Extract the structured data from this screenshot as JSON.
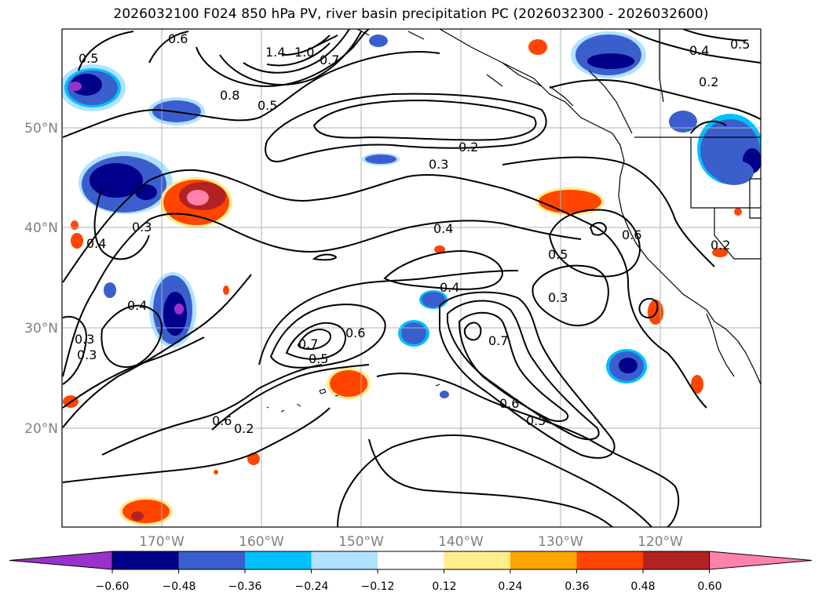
{
  "title": "2026032100 F024 850 hPa PV, river basin precipitation PC (2026032300 - 2026032600)",
  "latitude_labels": [
    "50°N",
    "40°N",
    "30°N",
    "20°N"
  ],
  "longitude_labels": [
    "170°W",
    "160°W",
    "150°W",
    "140°W",
    "130°W",
    "120°W"
  ],
  "colorbar": {
    "tick_labels": [
      "−0.60",
      "−0.48",
      "−0.36",
      "−0.24",
      "−0.12",
      "0.12",
      "0.24",
      "0.36",
      "0.48",
      "0.60"
    ],
    "colors": [
      "#9932cc",
      "#00008b",
      "#3a5fcd",
      "#00bfff",
      "#b0e2ff",
      "#ffffff",
      "#ffec8b",
      "#ffa500",
      "#ff4500",
      "#b22222",
      "#ff82ab"
    ]
  },
  "pv_contour_labels": [
    "0.5",
    "0.6",
    "1.4",
    "1.0",
    "0.7",
    "0.8",
    "0.5",
    "0.2",
    "0.3",
    "0.4",
    "0.5",
    "0.6",
    "0.3",
    "0.4",
    "0.3",
    "0.4",
    "0.3",
    "0.7",
    "0.5",
    "0.6",
    "0.4",
    "0.2",
    "0.7",
    "0.6",
    "0.5",
    "0.3",
    "0.6",
    "0.2",
    "0.4",
    "0.5",
    "0.2"
  ]
}
